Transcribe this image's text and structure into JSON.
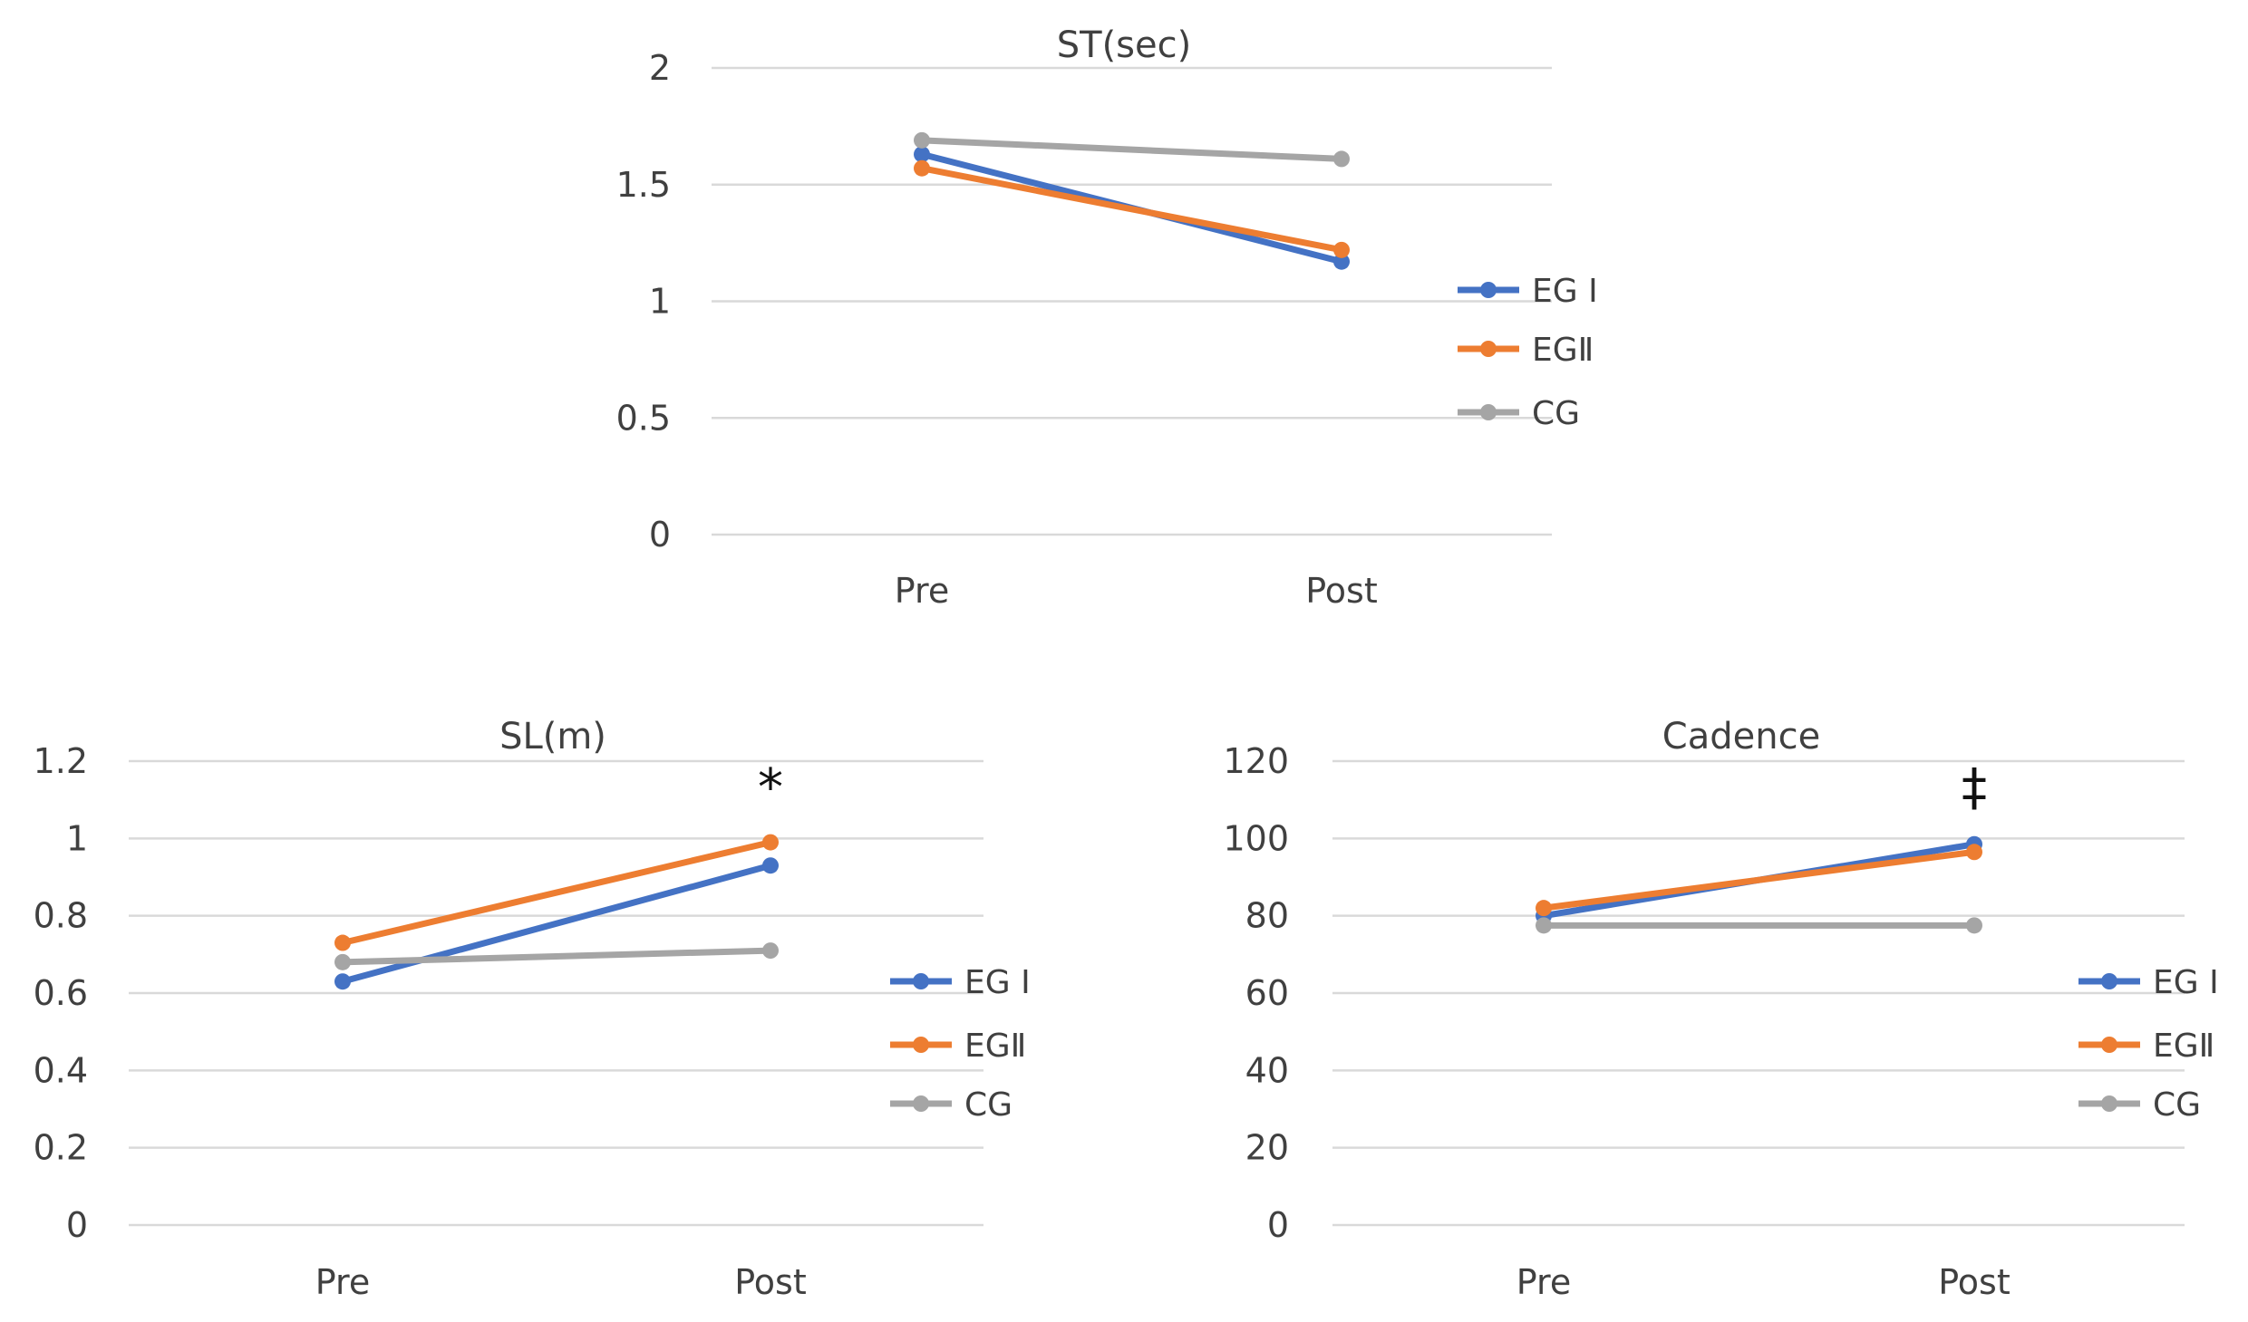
{
  "series_style": {
    "EG I": "#4472c4",
    "EGⅡ": "#ed7d31",
    "CG": "#a5a5a5"
  },
  "chart_data": [
    {
      "id": "st",
      "type": "line",
      "title": "ST(sec)",
      "categories": [
        "Pre",
        "Post"
      ],
      "ylim": [
        0,
        2
      ],
      "yticks": [
        "0",
        "0.5",
        "1",
        "1.5",
        "2"
      ],
      "series": [
        {
          "name": "EG I",
          "values": [
            1.63,
            1.17
          ]
        },
        {
          "name": "EGⅡ",
          "values": [
            1.57,
            1.22
          ]
        },
        {
          "name": "CG",
          "values": [
            1.69,
            1.61
          ]
        }
      ],
      "legend": [
        "EG I",
        "EGⅡ",
        "CG"
      ],
      "legend_position": "right",
      "annotation": null,
      "xlabel": "",
      "ylabel": "",
      "grid": true
    },
    {
      "id": "sl",
      "type": "line",
      "title": "SL(m)",
      "categories": [
        "Pre",
        "Post"
      ],
      "ylim": [
        0,
        1.2
      ],
      "yticks": [
        "0",
        "0.2",
        "0.4",
        "0.6",
        "0.8",
        "1",
        "1.2"
      ],
      "series": [
        {
          "name": "EG I",
          "values": [
            0.63,
            0.93
          ]
        },
        {
          "name": "EGⅡ",
          "values": [
            0.73,
            0.99
          ]
        },
        {
          "name": "CG",
          "values": [
            0.68,
            0.71
          ]
        }
      ],
      "legend": [
        "EG I",
        "EGⅡ",
        "CG"
      ],
      "legend_position": "right",
      "annotation": "*",
      "xlabel": "",
      "ylabel": "",
      "grid": true
    },
    {
      "id": "cadence",
      "type": "line",
      "title": "Cadence",
      "categories": [
        "Pre",
        "Post"
      ],
      "ylim": [
        0,
        120
      ],
      "yticks": [
        "0",
        "20",
        "40",
        "60",
        "80",
        "100",
        "120"
      ],
      "series": [
        {
          "name": "EG I",
          "values": [
            80,
            98.5
          ]
        },
        {
          "name": "EGⅡ",
          "values": [
            82,
            96.5
          ]
        },
        {
          "name": "CG",
          "values": [
            77.5,
            77.5
          ]
        }
      ],
      "legend": [
        "EG I",
        "EGⅡ",
        "CG"
      ],
      "legend_position": "right",
      "annotation": "‡",
      "xlabel": "",
      "ylabel": "",
      "grid": true
    }
  ]
}
